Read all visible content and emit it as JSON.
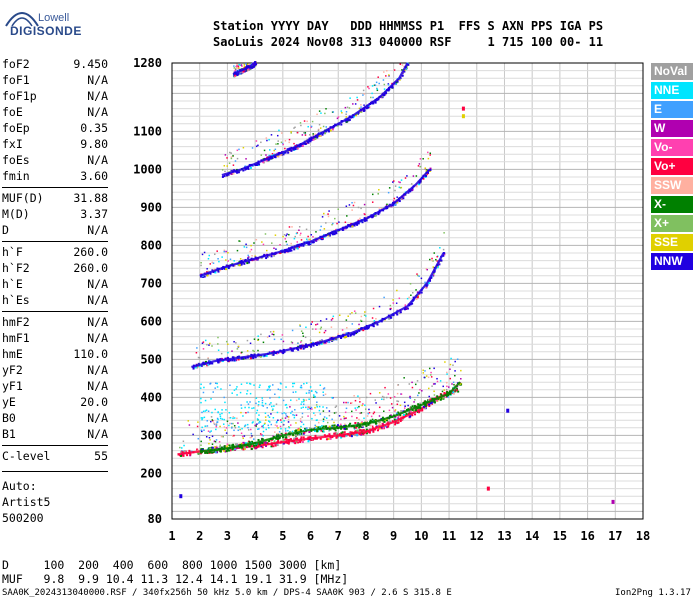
{
  "logo": {
    "brand_small": "Lowell",
    "brand_main": "DIGISONDE"
  },
  "header": {
    "row1": "Station YYYY DAY   DDD HHMMSS P1  FFS S AXN PPS IGA PS",
    "row2": "SaoLuis 2024 Nov08 313 040000 RSF     1 715 100 00- 11"
  },
  "params_a": [
    {
      "name": "foF2",
      "value": "9.450"
    },
    {
      "name": "foF1",
      "value": "N/A"
    },
    {
      "name": "foF1p",
      "value": "N/A"
    },
    {
      "name": "foE",
      "value": "N/A"
    },
    {
      "name": "foEp",
      "value": "0.35"
    },
    {
      "name": "fxI",
      "value": "9.80"
    },
    {
      "name": "foEs",
      "value": "N/A"
    },
    {
      "name": "fmin",
      "value": "3.60"
    }
  ],
  "params_b": [
    {
      "name": "MUF(D)",
      "value": "31.88"
    },
    {
      "name": "M(D)",
      "value": "3.37"
    },
    {
      "name": "D",
      "value": "N/A"
    }
  ],
  "params_c": [
    {
      "name": "h`F",
      "value": "260.0"
    },
    {
      "name": "h`F2",
      "value": "260.0"
    },
    {
      "name": "h`E",
      "value": "N/A"
    },
    {
      "name": "h`Es",
      "value": "N/A"
    }
  ],
  "params_d": [
    {
      "name": "hmF2",
      "value": "N/A"
    },
    {
      "name": "hmF1",
      "value": "N/A"
    },
    {
      "name": "hmE",
      "value": "110.0"
    },
    {
      "name": "yF2",
      "value": "N/A"
    },
    {
      "name": "yF1",
      "value": "N/A"
    },
    {
      "name": "yE",
      "value": "20.0"
    },
    {
      "name": "B0",
      "value": "N/A"
    },
    {
      "name": "B1",
      "value": "N/A"
    }
  ],
  "params_e": [
    {
      "name": "C-level",
      "value": "55"
    }
  ],
  "auto": [
    "Auto:",
    "Artist5",
    "500200"
  ],
  "bottom": {
    "d_row": "D     100  200  400  600  800 1000 1500 3000 [km]",
    "muf_row": "MUF   9.8  9.9 10.4 11.3 12.4 14.1 19.1 31.9 [MHz]"
  },
  "footer": {
    "left": "SAA0K_2024313040000.RSF / 340fx256h 50 kHz 5.0 km / DPS-4 SAA0K 903 / 2.6 S 315.8 E",
    "right": "Ion2Png 1.3.17"
  },
  "legend": [
    {
      "label": "NoVal",
      "color": "#a0a0a0"
    },
    {
      "label": "NNE",
      "color": "#00e5ff"
    },
    {
      "label": "E",
      "color": "#40a0ff"
    },
    {
      "label": "W",
      "color": "#b000b0"
    },
    {
      "label": "Vo-",
      "color": "#ff40b0"
    },
    {
      "label": "Vo+",
      "color": "#ff0040"
    },
    {
      "label": "SSW",
      "color": "#ffb0a0"
    },
    {
      "label": "X-",
      "color": "#008000"
    },
    {
      "label": "X+",
      "color": "#80c060"
    },
    {
      "label": "SSE",
      "color": "#e0d000"
    },
    {
      "label": "NNW",
      "color": "#2000e0"
    }
  ],
  "chart_data": {
    "type": "scatter",
    "title": "",
    "xlabel": "",
    "ylabel": "",
    "xlim": [
      1,
      18
    ],
    "ylim": [
      80,
      1280
    ],
    "x_ticks": [
      1,
      2,
      3,
      4,
      5,
      6,
      7,
      8,
      9,
      10,
      11,
      12,
      13,
      14,
      15,
      16,
      17,
      18
    ],
    "y_ticks": [
      80,
      200,
      300,
      400,
      500,
      600,
      700,
      800,
      900,
      1000,
      1100,
      1280
    ],
    "grid": true,
    "trace_series": [
      {
        "name": "O trace 1st hop",
        "color": "#ff0040",
        "points": [
          [
            1.2,
            250
          ],
          [
            2,
            258
          ],
          [
            3,
            265
          ],
          [
            4,
            272
          ],
          [
            5,
            282
          ],
          [
            6,
            292
          ],
          [
            7,
            300
          ],
          [
            8,
            310
          ],
          [
            9,
            335
          ],
          [
            10,
            370
          ],
          [
            10.6,
            400
          ],
          [
            11.3,
            420
          ]
        ]
      },
      {
        "name": "X trace 1st hop",
        "color": "#008000",
        "points": [
          [
            2,
            258
          ],
          [
            3,
            266
          ],
          [
            4,
            280
          ],
          [
            5,
            300
          ],
          [
            6,
            315
          ],
          [
            7,
            320
          ],
          [
            8,
            330
          ],
          [
            9,
            350
          ],
          [
            10,
            380
          ],
          [
            11,
            410
          ],
          [
            11.4,
            440
          ]
        ]
      },
      {
        "name": "2nd hop",
        "color": "#2000e0",
        "points": [
          [
            1.7,
            480
          ],
          [
            2.5,
            495
          ],
          [
            3.5,
            505
          ],
          [
            4.5,
            515
          ],
          [
            5.5,
            530
          ],
          [
            6.5,
            548
          ],
          [
            7.5,
            570
          ],
          [
            8.5,
            600
          ],
          [
            9.5,
            640
          ],
          [
            10.2,
            700
          ],
          [
            10.8,
            780
          ]
        ]
      },
      {
        "name": "3rd hop",
        "color": "#2000e0",
        "points": [
          [
            2.0,
            720
          ],
          [
            3,
            745
          ],
          [
            4,
            765
          ],
          [
            5,
            785
          ],
          [
            6,
            810
          ],
          [
            7,
            840
          ],
          [
            8,
            870
          ],
          [
            9,
            910
          ],
          [
            9.8,
            960
          ],
          [
            10.3,
            1000
          ]
        ]
      },
      {
        "name": "4th hop",
        "color": "#2000e0",
        "points": [
          [
            2.8,
            985
          ],
          [
            3.5,
            1000
          ],
          [
            4.5,
            1030
          ],
          [
            5.5,
            1060
          ],
          [
            6.5,
            1100
          ],
          [
            7.5,
            1140
          ],
          [
            8.5,
            1190
          ],
          [
            9.2,
            1240
          ],
          [
            9.5,
            1280
          ]
        ]
      },
      {
        "name": "5th hop",
        "color": "#2000e0",
        "points": [
          [
            3.2,
            1250
          ],
          [
            3.8,
            1270
          ],
          [
            4.0,
            1280
          ]
        ]
      }
    ],
    "isolated_points": [
      {
        "x": 1.3,
        "y": 140,
        "color": "#2000e0"
      },
      {
        "x": 11.5,
        "y": 1160,
        "color": "#ff0040"
      },
      {
        "x": 11.5,
        "y": 1140,
        "color": "#e0d000"
      },
      {
        "x": 16.9,
        "y": 125,
        "color": "#b000b0"
      },
      {
        "x": 12.4,
        "y": 160,
        "color": "#ff0040"
      },
      {
        "x": 13.1,
        "y": 365,
        "color": "#2000e0"
      }
    ]
  }
}
